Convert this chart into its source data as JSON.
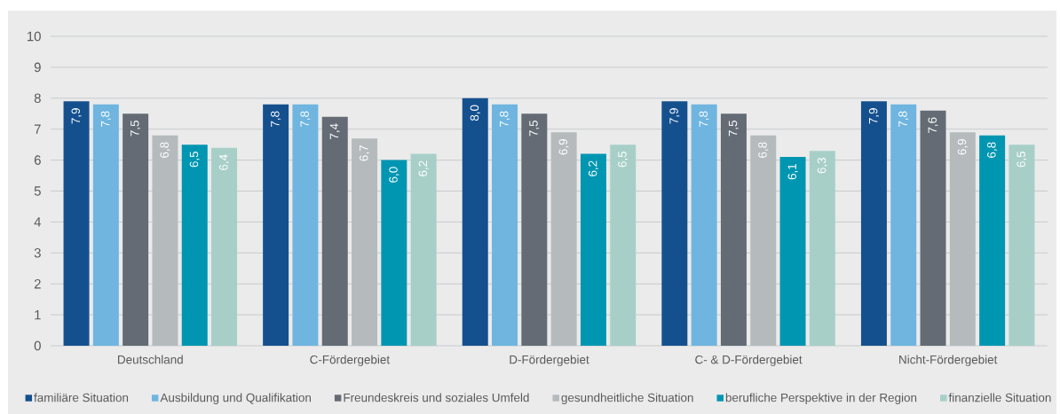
{
  "chart_data": {
    "type": "bar",
    "categories": [
      "Deutschland",
      "C-Fördergebiet",
      "D-Fördergebiet",
      "C- & D-Fördergebiet",
      "Nicht-Fördergebiet"
    ],
    "series": [
      {
        "name": "familiäre Situation",
        "color": "#15508e",
        "values": [
          7.9,
          7.8,
          8.0,
          7.9,
          7.9
        ],
        "value_labels": [
          "7,9",
          "7,8",
          "8,0",
          "7,9",
          "7,9"
        ]
      },
      {
        "name": "Ausbildung und Qualifikation",
        "color": "#6fb5e0",
        "values": [
          7.8,
          7.8,
          7.8,
          7.8,
          7.8
        ],
        "value_labels": [
          "7,8",
          "7,8",
          "7,8",
          "7,8",
          "7,8"
        ]
      },
      {
        "name": "Freundeskreis und soziales Umfeld",
        "color": "#646b74",
        "values": [
          7.5,
          7.4,
          7.5,
          7.5,
          7.6
        ],
        "value_labels": [
          "7,5",
          "7,4",
          "7,5",
          "7,5",
          "7,6"
        ]
      },
      {
        "name": "gesundheitliche Situation",
        "color": "#b5babd",
        "values": [
          6.8,
          6.7,
          6.9,
          6.8,
          6.9
        ],
        "value_labels": [
          "6,8",
          "6,7",
          "6,9",
          "6,8",
          "6,9"
        ]
      },
      {
        "name": "berufliche Perspektive in der Region",
        "color": "#0096b1",
        "values": [
          6.5,
          6.0,
          6.2,
          6.1,
          6.8
        ],
        "value_labels": [
          "6,5",
          "6,0",
          "6,2",
          "6,1",
          "6,8"
        ]
      },
      {
        "name": "finanzielle Situation",
        "color": "#a7cfc8",
        "values": [
          6.4,
          6.2,
          6.5,
          6.3,
          6.5
        ],
        "value_labels": [
          "6,4",
          "6,2",
          "6,5",
          "6,3",
          "6,5"
        ]
      }
    ],
    "ylim": [
      0,
      10
    ],
    "yticks": [
      0,
      1,
      2,
      3,
      4,
      5,
      6,
      7,
      8,
      9,
      10
    ],
    "grid": "y",
    "legend": "bottom"
  }
}
